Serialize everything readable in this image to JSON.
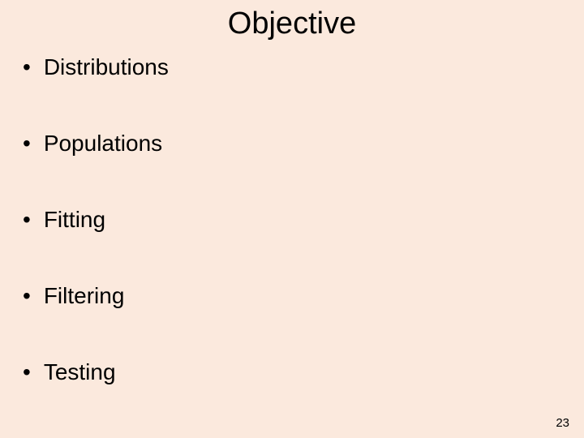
{
  "slide": {
    "title": "Objective",
    "bullets": [
      "Distributions",
      "Populations",
      "Fitting",
      "Filtering",
      "Testing"
    ],
    "page_number": "23",
    "background_color": "#fbe9dd",
    "text_color": "#000000",
    "title_fontsize": 38,
    "bullet_fontsize": 28,
    "page_number_fontsize": 15,
    "font_family": "Arial"
  }
}
